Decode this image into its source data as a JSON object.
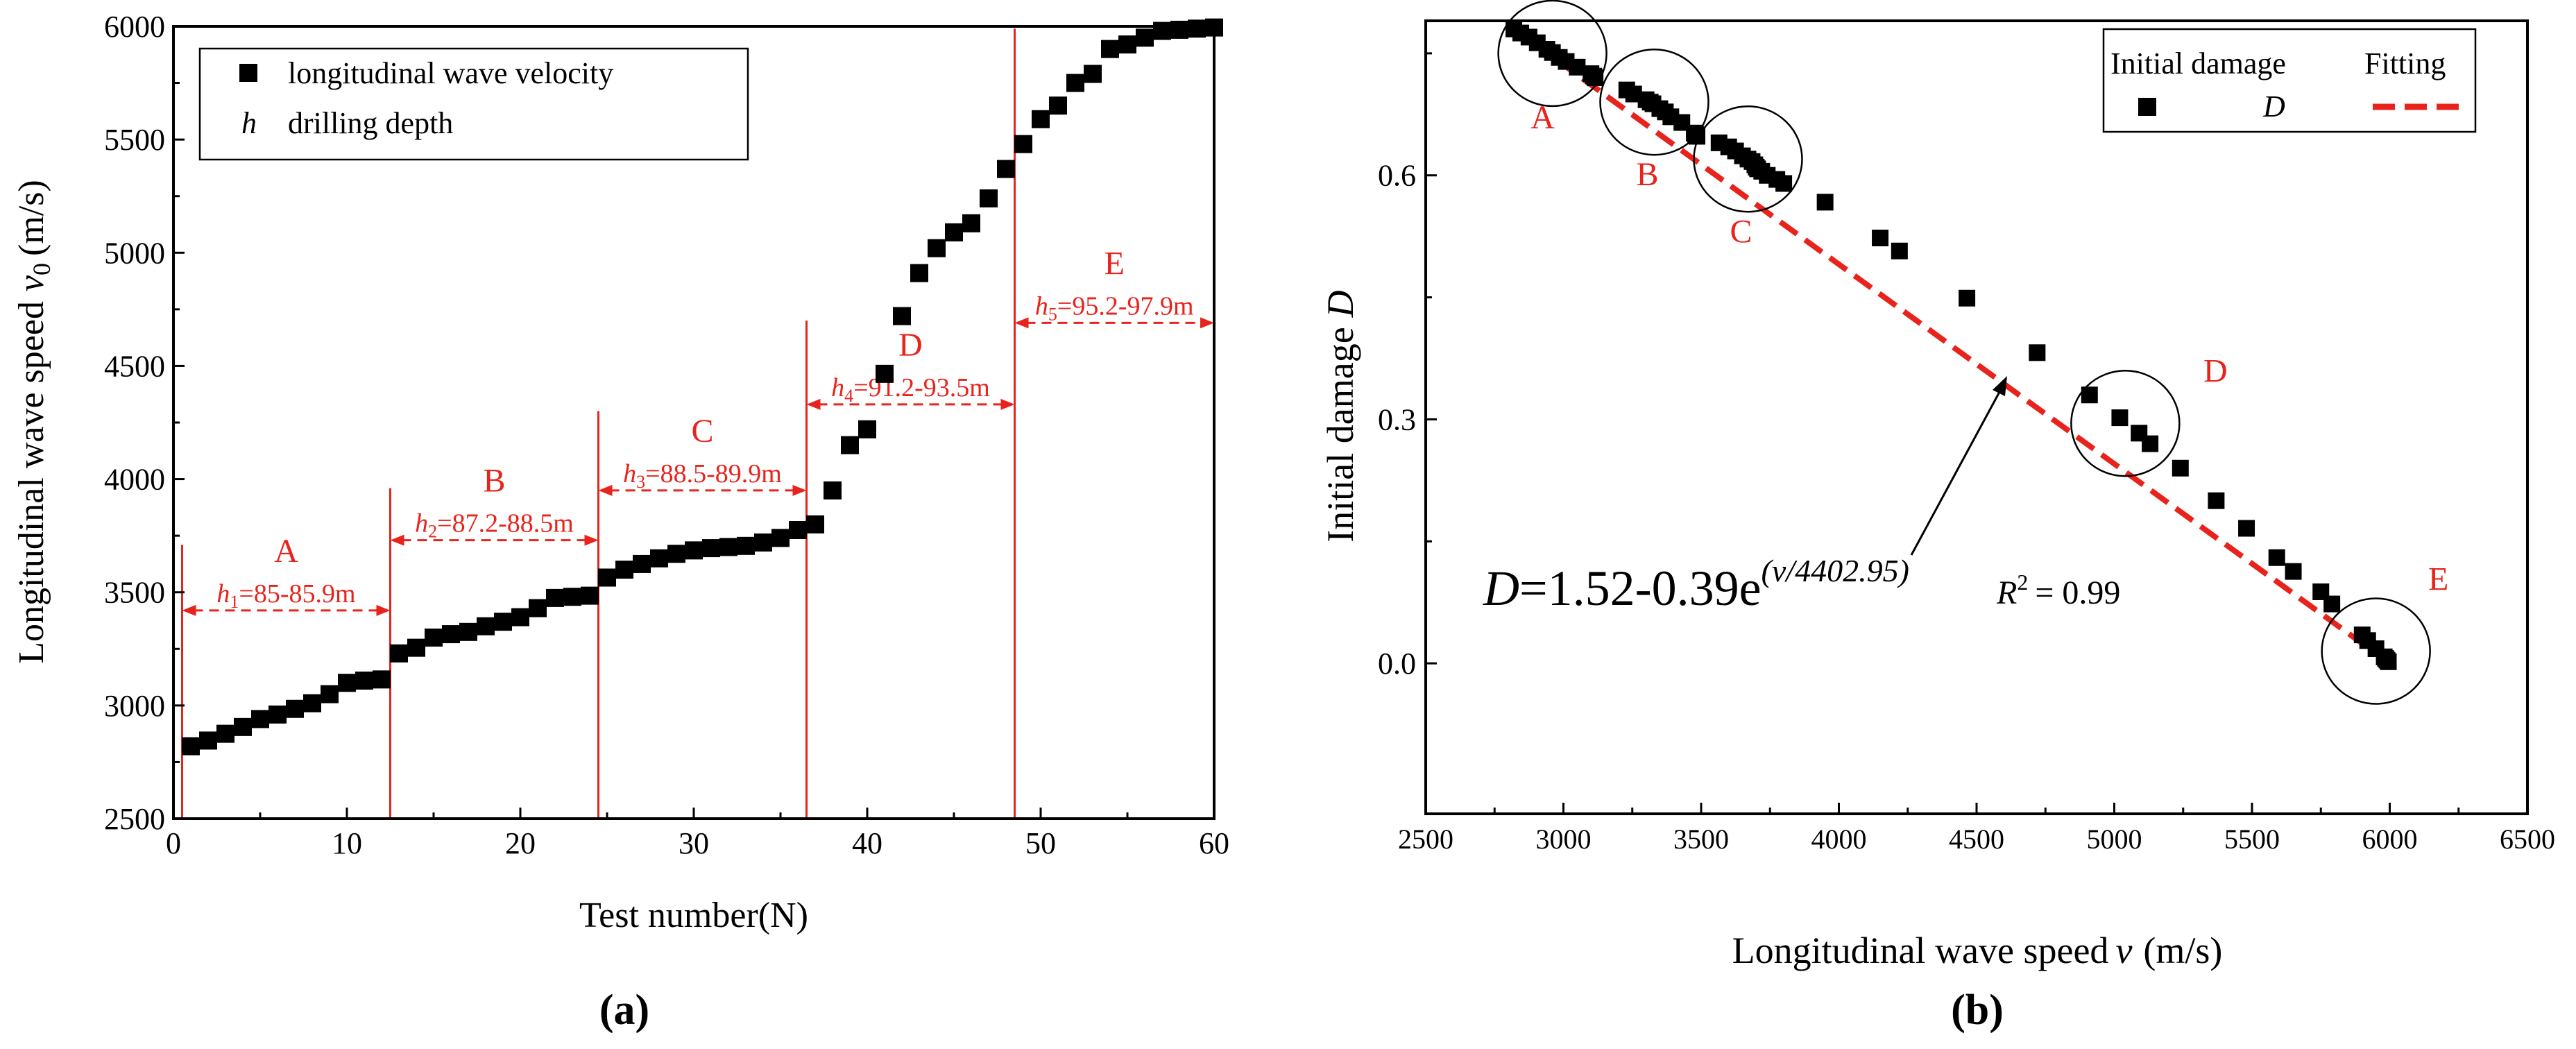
{
  "colors": {
    "accent": "#e8231c",
    "ink": "#000000"
  },
  "chart_data": [
    {
      "type": "scatter",
      "panel_label": "(a)",
      "xlabel": "Test number(N)",
      "ylabel": "Longitudinal wave speed",
      "ylabel_symbol": "v",
      "ylabel_sub": "0",
      "ylabel_unit": "(m/s)",
      "xlim": [
        0,
        60
      ],
      "ylim": [
        2500,
        6000
      ],
      "xticks": [
        0,
        10,
        20,
        30,
        40,
        50,
        60
      ],
      "yticks": [
        2500,
        3000,
        3500,
        4000,
        4500,
        5000,
        5500,
        6000
      ],
      "legend": [
        {
          "marker": "square",
          "label": "longitudinal wave velocity"
        },
        {
          "marker": "h",
          "label": "drilling depth"
        }
      ],
      "series": [
        {
          "name": "longitudinal wave velocity",
          "x": [
            1,
            2,
            3,
            4,
            5,
            6,
            7,
            8,
            9,
            10,
            11,
            12,
            13,
            14,
            15,
            16,
            17,
            18,
            19,
            20,
            21,
            22,
            23,
            24,
            25,
            26,
            27,
            28,
            29,
            30,
            31,
            32,
            33,
            34,
            35,
            36,
            37,
            38,
            39,
            40,
            41,
            42,
            43,
            44,
            45,
            46,
            47,
            48,
            49,
            50,
            51,
            52,
            53,
            54,
            55,
            56,
            57,
            58,
            59,
            60
          ],
          "y": [
            2820,
            2845,
            2875,
            2905,
            2940,
            2960,
            2985,
            3010,
            3050,
            3100,
            3110,
            3115,
            3230,
            3255,
            3300,
            3315,
            3325,
            3350,
            3370,
            3390,
            3430,
            3475,
            3480,
            3485,
            3565,
            3600,
            3625,
            3650,
            3670,
            3685,
            3695,
            3700,
            3705,
            3720,
            3740,
            3775,
            3800,
            3950,
            4150,
            4220,
            4465,
            4720,
            4910,
            5020,
            5090,
            5130,
            5240,
            5370,
            5480,
            5590,
            5650,
            5750,
            5790,
            5900,
            5920,
            5950,
            5980,
            5985,
            5990,
            5995
          ]
        }
      ],
      "segments": [
        {
          "name": "A",
          "x_start": 0.5,
          "x_end": 12.5,
          "boundary_top": 3710,
          "arrow_y": 3420,
          "depth_label": "h1=85-85.9m",
          "h_sub": "1",
          "range": "=85-85.9m"
        },
        {
          "name": "B",
          "x_start": 12.5,
          "x_end": 24.5,
          "boundary_top": 3960,
          "arrow_y": 3730,
          "depth_label": "h2=87.2-88.5m",
          "h_sub": "2",
          "range": "=87.2-88.5m"
        },
        {
          "name": "C",
          "x_start": 24.5,
          "x_end": 36.5,
          "boundary_top": 4300,
          "arrow_y": 3950,
          "depth_label": "h3=88.5-89.9m",
          "h_sub": "3",
          "range": "=88.5-89.9m"
        },
        {
          "name": "D",
          "x_start": 36.5,
          "x_end": 48.5,
          "boundary_top": 4700,
          "arrow_y": 4330,
          "depth_label": "h4=91.2-93.5m",
          "h_sub": "4",
          "range": "=91.2-93.5m"
        },
        {
          "name": "E",
          "x_start": 48.5,
          "x_end": 60,
          "boundary_top": 5990,
          "arrow_y": 4690,
          "depth_label": "h5=95.2-97.9m",
          "h_sub": "5",
          "range": "=95.2-97.9m"
        }
      ]
    },
    {
      "type": "scatter",
      "panel_label": "(b)",
      "xlabel": "Longitudinal wave speed",
      "xlabel_symbol": "v",
      "xlabel_unit": "(m/s)",
      "ylabel": "Initial damage",
      "ylabel_symbol": "D",
      "xlim": [
        2500,
        6500
      ],
      "ylim": [
        -0.185,
        0.79
      ],
      "xticks": [
        2500,
        3000,
        3500,
        4000,
        4500,
        5000,
        5500,
        6000,
        6500
      ],
      "yticks": [
        0.0,
        0.3,
        0.6
      ],
      "ytick_labels": [
        "0.0",
        "0.3",
        "0.6"
      ],
      "legend": [
        {
          "title": "Initial damage",
          "marker": "square",
          "label": "D"
        },
        {
          "title": "Fitting",
          "marker": "dash-line",
          "label": ""
        }
      ],
      "series": [
        {
          "name": "Initial damage D",
          "x": [
            2820,
            2845,
            2875,
            2905,
            2940,
            2960,
            2985,
            3010,
            3050,
            3100,
            3110,
            3115,
            3230,
            3255,
            3300,
            3315,
            3325,
            3350,
            3370,
            3390,
            3430,
            3475,
            3480,
            3485,
            3565,
            3600,
            3625,
            3650,
            3670,
            3685,
            3695,
            3700,
            3705,
            3720,
            3740,
            3775,
            3800,
            3950,
            4150,
            4220,
            4465,
            4720,
            4910,
            5020,
            5090,
            5130,
            5240,
            5370,
            5480,
            5590,
            5650,
            5750,
            5790,
            5900,
            5920,
            5950,
            5980,
            5985,
            5990,
            5995
          ],
          "y": [
            0.78,
            0.775,
            0.77,
            0.763,
            0.755,
            0.751,
            0.745,
            0.74,
            0.733,
            0.725,
            0.722,
            0.72,
            0.705,
            0.7,
            0.693,
            0.69,
            0.688,
            0.682,
            0.678,
            0.672,
            0.665,
            0.652,
            0.65,
            0.648,
            0.64,
            0.635,
            0.63,
            0.624,
            0.62,
            0.617,
            0.613,
            0.61,
            0.608,
            0.605,
            0.6,
            0.595,
            0.59,
            0.567,
            0.523,
            0.507,
            0.449,
            0.382,
            0.33,
            0.302,
            0.283,
            0.27,
            0.24,
            0.2,
            0.166,
            0.13,
            0.113,
            0.088,
            0.073,
            0.035,
            0.028,
            0.018,
            0.008,
            0.006,
            0.004,
            0.002
          ]
        },
        {
          "name": "Fitting",
          "x": [
            2800,
            6000
          ],
          "y": [
            0.785,
            0.0
          ]
        }
      ],
      "equation": {
        "prefix": "D",
        "body": "=1.52-0.39e",
        "exponent": "(v/4402.95)"
      },
      "r_squared": {
        "symbol": "R",
        "power": "2",
        "value": "= 0.99"
      },
      "circle_labels": [
        {
          "name": "A",
          "cx": 2960,
          "cy": 0.75
        },
        {
          "name": "B",
          "cx": 3330,
          "cy": 0.69
        },
        {
          "name": "C",
          "cx": 3670,
          "cy": 0.62
        },
        {
          "name": "D",
          "cx": 5040,
          "cy": 0.295
        },
        {
          "name": "E",
          "cx": 5950,
          "cy": 0.015
        }
      ]
    }
  ]
}
